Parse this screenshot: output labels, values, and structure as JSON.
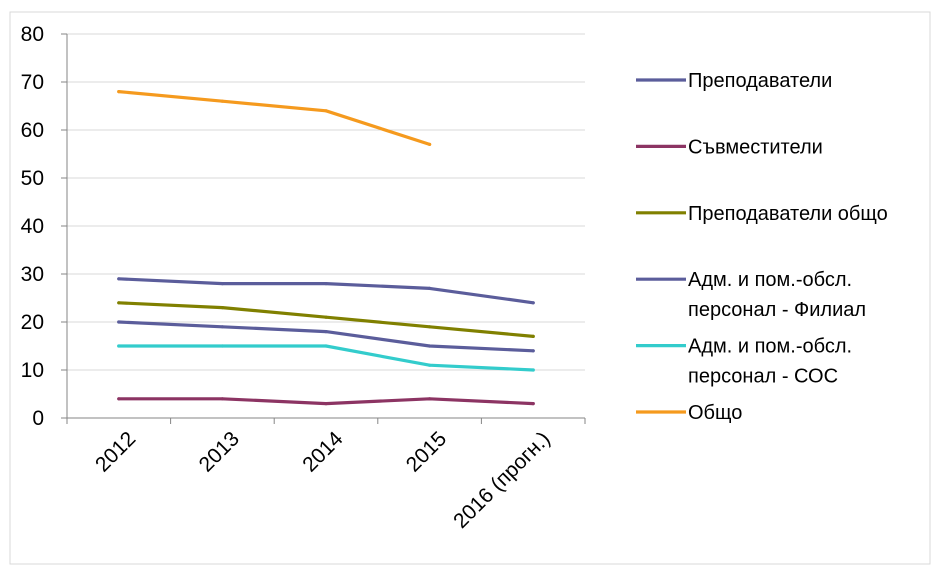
{
  "chart_data": {
    "type": "line",
    "categories": [
      "2012",
      "2013",
      "2014",
      "2015",
      "2016 (прогн.)"
    ],
    "ylim": [
      0,
      80
    ],
    "yticks": [
      0,
      10,
      20,
      30,
      40,
      50,
      60,
      70,
      80
    ],
    "grid": true,
    "legend_position": "right",
    "title": "",
    "xlabel": "",
    "ylabel": "",
    "series": [
      {
        "name": "Преподаватели",
        "color": "#5b5d9b",
        "values": [
          29,
          28,
          28,
          27,
          24
        ]
      },
      {
        "name": "Съвместители",
        "color": "#8c3463",
        "values": [
          4,
          4,
          3,
          4,
          3
        ]
      },
      {
        "name": "Преподаватели общо",
        "color": "#808000",
        "values": [
          24,
          23,
          21,
          19,
          17
        ]
      },
      {
        "name": [
          "Адм. и пом.-обсл.",
          "персонал - Филиал"
        ],
        "color": "#5b5d9b",
        "values": [
          20,
          19,
          18,
          15,
          14
        ]
      },
      {
        "name": [
          "Адм. и пом.-обсл.",
          "персонал - СОС"
        ],
        "color": "#33cccc",
        "values": [
          15,
          15,
          15,
          11,
          10
        ]
      },
      {
        "name": "Общо",
        "color": "#f59a1e",
        "values": [
          68,
          66,
          64,
          57,
          null
        ]
      }
    ]
  }
}
